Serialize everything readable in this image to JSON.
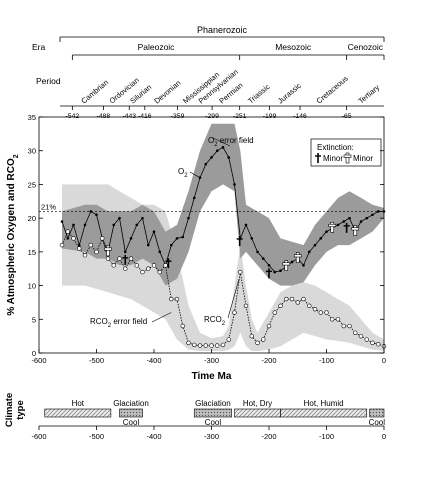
{
  "chart_data": {
    "type": "line",
    "ylabel_main": "% Atmospheric Oxygen and RCO",
    "ylabel_sub": "2",
    "xlabel": "Time Ma",
    "xlim": [
      -600,
      0
    ],
    "ylim": [
      0,
      35
    ],
    "y_ticks": [
      0,
      5,
      10,
      15,
      20,
      25,
      30,
      35
    ],
    "x_ticks": [
      -600,
      -500,
      -400,
      -300,
      -200,
      -100,
      0
    ],
    "grid": false,
    "timescale": {
      "eon": "Phanerozoic",
      "era_header": "Era",
      "eras": [
        {
          "name": "Paleozoic",
          "start": -542,
          "end": -251
        },
        {
          "name": "Mesozoic",
          "start": -251,
          "end": -65
        },
        {
          "name": "Cenozoic",
          "start": -65,
          "end": 0
        }
      ],
      "period_header": "Period",
      "periods": [
        {
          "name": "Cambrian",
          "mid": -515
        },
        {
          "name": "Ordovician",
          "mid": -466
        },
        {
          "name": "Silurian",
          "mid": -430
        },
        {
          "name": "Devonian",
          "mid": -388
        },
        {
          "name": "Mississippian",
          "mid": -338
        },
        {
          "name": "Pennsylvanian",
          "mid": -311
        },
        {
          "name": "Permian",
          "mid": -275
        },
        {
          "name": "Triassic",
          "mid": -225
        },
        {
          "name": "Jurassic",
          "mid": -173
        },
        {
          "name": "Cretaceous",
          "mid": -106
        },
        {
          "name": "Tertiary",
          "mid": -33
        }
      ],
      "boundaries": [
        {
          "value": -542,
          "label": "-542"
        },
        {
          "value": -488,
          "label": "-488"
        },
        {
          "value": -443,
          "label": "-443"
        },
        {
          "value": -416,
          "label": "-416"
        },
        {
          "value": -359,
          "label": "-359"
        },
        {
          "value": -299,
          "label": "-299"
        },
        {
          "value": -251,
          "label": "-251"
        },
        {
          "value": -199,
          "label": "-199"
        },
        {
          "value": -146,
          "label": "-146"
        },
        {
          "value": -65,
          "label": "-65"
        }
      ]
    },
    "reference_line": {
      "y": 21,
      "label": "21%"
    },
    "series": [
      {
        "name": "O",
        "name_sub": "2",
        "color": "#000000",
        "x": [
          -560,
          -550,
          -540,
          -530,
          -520,
          -510,
          -500,
          -490,
          -480,
          -470,
          -460,
          -450,
          -440,
          -430,
          -420,
          -410,
          -400,
          -390,
          -380,
          -370,
          -360,
          -350,
          -340,
          -330,
          -320,
          -310,
          -300,
          -290,
          -280,
          -270,
          -260,
          -250,
          -240,
          -230,
          -220,
          -210,
          -200,
          -190,
          -180,
          -170,
          -160,
          -150,
          -140,
          -130,
          -120,
          -110,
          -100,
          -90,
          -80,
          -70,
          -60,
          -50,
          -40,
          -30,
          -20,
          -10,
          0
        ],
        "values": [
          19.5,
          17,
          19,
          16,
          19,
          21,
          20.5,
          17,
          15,
          19,
          20,
          15,
          17,
          19,
          20,
          16,
          18,
          15,
          13,
          16,
          17,
          17.2,
          20,
          23,
          26,
          28,
          29,
          30,
          30.5,
          29,
          25,
          17,
          19,
          17,
          15,
          14,
          13,
          12,
          12.2,
          12.8,
          13.5,
          14,
          13,
          15,
          16,
          17,
          18,
          18.5,
          19,
          19.5,
          20,
          18,
          19.5,
          20,
          20.5,
          21,
          21
        ]
      },
      {
        "name": "RCO",
        "name_sub": "2",
        "color": "#000000",
        "x": [
          -560,
          -550,
          -540,
          -530,
          -520,
          -510,
          -500,
          -490,
          -480,
          -470,
          -460,
          -450,
          -440,
          -430,
          -420,
          -410,
          -400,
          -390,
          -380,
          -370,
          -360,
          -350,
          -340,
          -330,
          -320,
          -310,
          -300,
          -290,
          -280,
          -270,
          -260,
          -250,
          -240,
          -230,
          -220,
          -210,
          -200,
          -190,
          -180,
          -170,
          -160,
          -150,
          -140,
          -130,
          -120,
          -110,
          -100,
          -90,
          -80,
          -70,
          -60,
          -50,
          -40,
          -30,
          -20,
          -10,
          0
        ],
        "values": [
          16,
          18,
          17,
          15.5,
          14.5,
          16,
          15,
          17,
          14,
          13,
          14,
          12.5,
          14,
          13,
          12,
          12.5,
          13,
          12,
          13,
          8,
          8,
          4,
          1.5,
          1.2,
          1.1,
          1.1,
          1.1,
          1.1,
          1.2,
          2,
          6,
          12,
          7,
          2.5,
          1.5,
          2,
          4,
          6,
          7,
          8,
          8,
          7.5,
          8,
          7,
          6.5,
          6,
          6,
          5,
          5,
          4,
          4,
          3,
          2.5,
          2,
          1.5,
          1.3,
          1
        ]
      }
    ],
    "error_bands": [
      {
        "label": "O",
        "label_sub": "2",
        "label_suffix": " error field",
        "color": "#9b9b9b",
        "x": [
          -560,
          -520,
          -500,
          -480,
          -460,
          -440,
          -420,
          -400,
          -380,
          -360,
          -340,
          -320,
          -300,
          -280,
          -260,
          -250,
          -240,
          -220,
          -200,
          -180,
          -160,
          -140,
          -120,
          -100,
          -80,
          -60,
          -40,
          -20,
          0
        ],
        "upper": [
          21,
          22,
          22,
          21,
          21,
          21,
          22,
          21,
          18,
          19,
          24,
          30,
          34,
          34,
          34,
          30,
          22,
          21,
          20,
          17,
          16.5,
          16,
          19,
          21,
          23,
          24,
          23,
          22,
          21.5
        ],
        "lower": [
          15.5,
          15,
          14,
          14,
          13,
          13,
          14,
          13,
          10,
          11,
          15,
          21,
          24,
          25,
          24,
          14,
          15,
          13,
          11,
          10,
          10,
          10.5,
          13,
          15,
          16,
          16,
          17,
          18,
          20
        ]
      },
      {
        "label": "RCO",
        "label_sub": "2",
        "label_suffix": " error field",
        "color": "#d9d9d9",
        "x": [
          -560,
          -520,
          -500,
          -480,
          -460,
          -440,
          -420,
          -400,
          -380,
          -360,
          -340,
          -320,
          -300,
          -280,
          -270,
          -260,
          -250,
          -240,
          -230,
          -220,
          -200,
          -180,
          -160,
          -140,
          -120,
          -100,
          -80,
          -60,
          -40,
          -20,
          0
        ],
        "upper": [
          25,
          25,
          25,
          25,
          24,
          23,
          22,
          22,
          21,
          15,
          7,
          3,
          2.2,
          2.5,
          4,
          10,
          16,
          10,
          5,
          3,
          6,
          9,
          10,
          10.5,
          10,
          9,
          8,
          7,
          5,
          3,
          2
        ],
        "lower": [
          10,
          10,
          9.5,
          9,
          8.5,
          8,
          7,
          6,
          5,
          2,
          0.5,
          0.3,
          0.3,
          0.3,
          0.5,
          1,
          3,
          1,
          0.3,
          0.3,
          0.5,
          1,
          2,
          3,
          2.5,
          2,
          1.8,
          1.5,
          1,
          0.5,
          0.3
        ]
      }
    ],
    "extinctions": {
      "title": "Extinction:",
      "major_label": "Major",
      "minor_label": "Minor",
      "major_x": [
        -450,
        -375,
        -251,
        -200,
        -65
      ],
      "minor_x": [
        -480,
        -170,
        -150,
        -90,
        -50
      ]
    },
    "climate": {
      "title_line1": "Climate",
      "title_line2": "type",
      "bands": [
        {
          "label": "Hot",
          "label_pos": "top",
          "start": -590,
          "end": -475,
          "style": "hatch"
        },
        {
          "label": "Glaciation",
          "label_pos": "top",
          "start": -460,
          "end": -420,
          "style": "dots"
        },
        {
          "label": "Cool",
          "label_pos": "bottom",
          "start": -460,
          "end": -420,
          "style": "none"
        },
        {
          "label": "Glaciation",
          "label_pos": "top",
          "start": -330,
          "end": -265,
          "style": "dots"
        },
        {
          "label": "Cool",
          "label_pos": "bottom",
          "start": -330,
          "end": -265,
          "style": "none"
        },
        {
          "label": "Hot, Dry",
          "label_pos": "top",
          "start": -260,
          "end": -180,
          "style": "hatch"
        },
        {
          "label": "Hot, Humid",
          "label_pos": "top",
          "start": -180,
          "end": -30,
          "style": "hatch"
        },
        {
          "label": "Cool",
          "label_pos": "bottom",
          "start": -25,
          "end": 0,
          "style": "dots"
        }
      ]
    }
  }
}
